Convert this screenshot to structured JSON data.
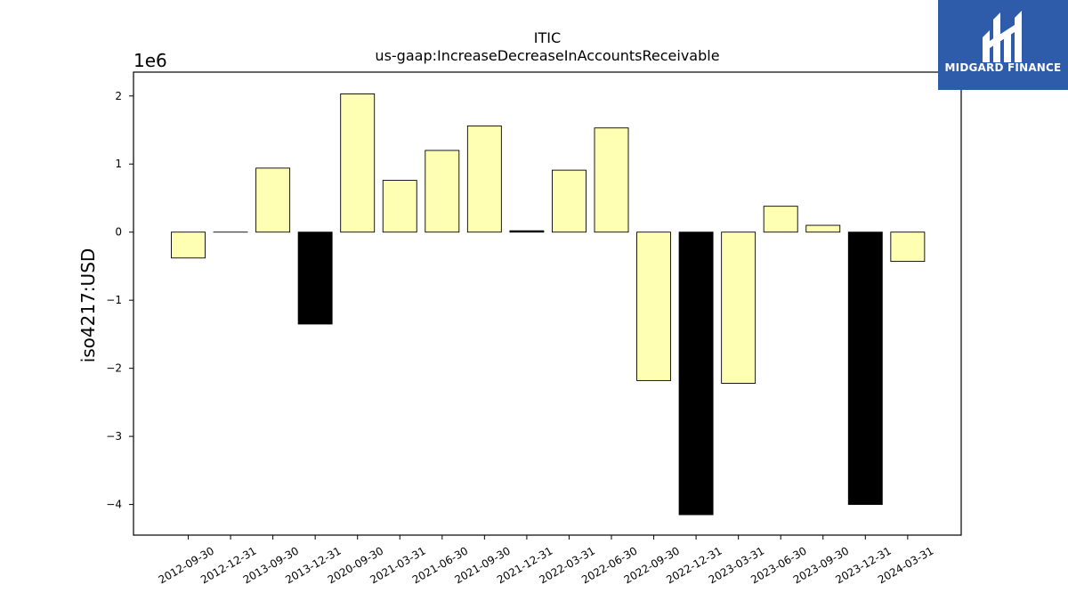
{
  "chart_data": {
    "type": "bar",
    "title": "ITIC",
    "subtitle": "us-gaap:IncreaseDecreaseInAccountsReceivable",
    "ylabel": "iso4217:USD",
    "xlabel": "",
    "scale_label": "1e6",
    "ylim": [
      -4.45,
      2.35
    ],
    "yticks": [
      -4,
      -3,
      -2,
      -1,
      0,
      1,
      2
    ],
    "ytick_labels": [
      "−4",
      "−3",
      "−2",
      "−1",
      "0",
      "1",
      "2"
    ],
    "grid": false,
    "categories": [
      "2012-09-30",
      "2012-12-31",
      "2013-09-30",
      "2013-12-31",
      "2020-09-30",
      "2021-03-31",
      "2021-06-30",
      "2021-09-30",
      "2021-12-31",
      "2022-03-31",
      "2022-06-30",
      "2022-09-30",
      "2022-12-31",
      "2023-03-31",
      "2023-06-30",
      "2023-09-30",
      "2023-12-31",
      "2024-03-31"
    ],
    "values": [
      -0.38,
      0.0,
      0.94,
      -1.35,
      2.03,
      0.76,
      1.2,
      1.56,
      0.02,
      0.91,
      1.53,
      -2.18,
      -4.15,
      -2.22,
      0.38,
      0.1,
      -4.0,
      -0.43
    ],
    "bar_colors": [
      "#ffffb3",
      "#ffffb3",
      "#ffffb3",
      "#000000",
      "#ffffb3",
      "#ffffb3",
      "#ffffb3",
      "#ffffb3",
      "#000000",
      "#ffffb3",
      "#ffffb3",
      "#ffffb3",
      "#000000",
      "#ffffb3",
      "#ffffb3",
      "#ffffb3",
      "#000000",
      "#ffffb3"
    ]
  },
  "logo": {
    "text": "MIDGARD FINANCE",
    "background": "#2f5bab"
  }
}
